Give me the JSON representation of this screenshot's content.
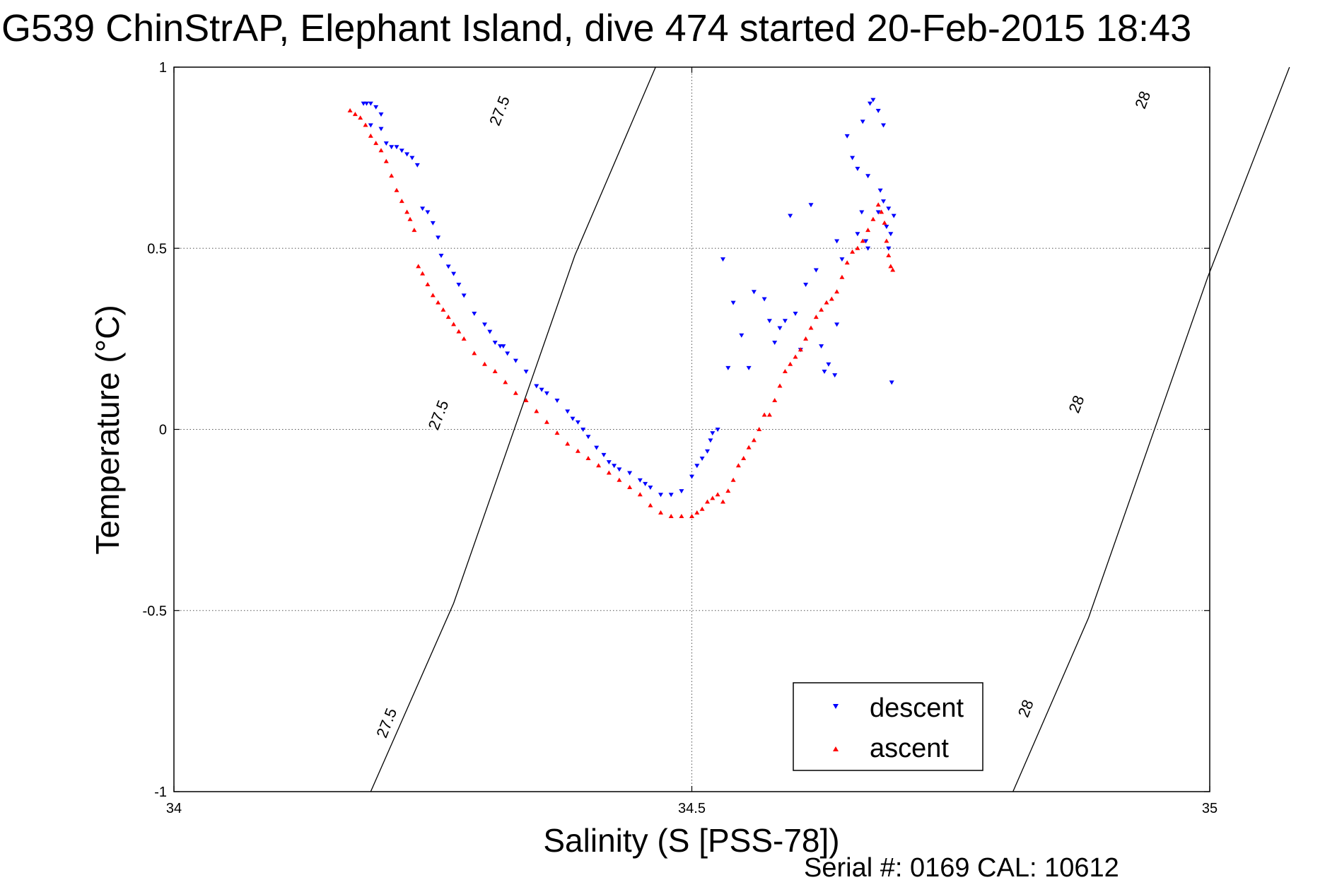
{
  "chart_data": {
    "type": "scatter",
    "title": "G539 ChinStrAP, Elephant Island, dive 474 started 20-Feb-2015 18:43",
    "xlabel": "Salinity (S [PSS-78])",
    "ylabel": "Temperature (°C)",
    "xlim": [
      34,
      35
    ],
    "ylim": [
      -1,
      1
    ],
    "xticks": [
      34,
      34.5,
      35
    ],
    "xtick_labels": [
      "34",
      "34.5",
      "35"
    ],
    "yticks": [
      -1,
      -0.5,
      0,
      0.5,
      1
    ],
    "ytick_labels": [
      "-1",
      "-0.5",
      "0",
      "0.5",
      "1"
    ],
    "grid": true,
    "legend_position": "bottom-right",
    "footer_text": "Serial #: 0169 CAL: 10612",
    "density_contours": [
      {
        "label": "27.5",
        "points": [
          [
            34.19,
            -1.0
          ],
          [
            34.27,
            -0.48
          ],
          [
            34.387,
            0.48
          ],
          [
            34.465,
            1.0
          ]
        ],
        "label_positions": [
          [
            34.205,
            -0.81
          ],
          [
            34.255,
            0.04
          ],
          [
            34.314,
            0.88
          ]
        ]
      },
      {
        "label": "28",
        "points": [
          [
            34.81,
            -1.0
          ],
          [
            34.883,
            -0.52
          ],
          [
            34.998,
            0.42
          ],
          [
            35.077,
            1.0
          ]
        ],
        "label_positions": [
          [
            34.822,
            -0.77
          ],
          [
            34.871,
            0.07
          ],
          [
            34.935,
            0.91
          ]
        ]
      }
    ],
    "series": [
      {
        "name": "descent",
        "color": "#0000ff",
        "marker": "triangle-down",
        "x": [
          34.183,
          34.186,
          34.19,
          34.195,
          34.2,
          34.19,
          34.2,
          34.205,
          34.21,
          34.215,
          34.22,
          34.225,
          34.23,
          34.235,
          34.24,
          34.245,
          34.25,
          34.255,
          34.258,
          34.265,
          34.27,
          34.275,
          34.28,
          34.29,
          34.3,
          34.305,
          34.31,
          34.315,
          34.318,
          34.322,
          34.33,
          34.34,
          34.35,
          34.355,
          34.36,
          34.37,
          34.38,
          34.385,
          34.39,
          34.395,
          34.4,
          34.408,
          34.415,
          34.42,
          34.425,
          34.43,
          34.44,
          34.45,
          34.455,
          34.46,
          34.47,
          34.48,
          34.49,
          34.5,
          34.505,
          34.51,
          34.515,
          34.518,
          34.52,
          34.525,
          34.53,
          34.535,
          34.54,
          34.548,
          34.555,
          34.56,
          34.57,
          34.575,
          34.58,
          34.585,
          34.59,
          34.595,
          34.6,
          34.605,
          34.61,
          34.615,
          34.62,
          34.628,
          34.632,
          34.64,
          34.645,
          34.65,
          34.655,
          34.66,
          34.665,
          34.67,
          34.672,
          34.675,
          34.68,
          34.682,
          34.685,
          34.688,
          34.69,
          34.692,
          34.695,
          34.68,
          34.67,
          34.64,
          34.625,
          34.638,
          34.685,
          34.69,
          34.693,
          34.66,
          34.664,
          34.668
        ],
        "y": [
          0.9,
          0.9,
          0.9,
          0.89,
          0.87,
          0.84,
          0.83,
          0.79,
          0.78,
          0.78,
          0.77,
          0.76,
          0.75,
          0.73,
          0.61,
          0.6,
          0.57,
          0.53,
          0.48,
          0.45,
          0.43,
          0.4,
          0.37,
          0.32,
          0.29,
          0.27,
          0.24,
          0.23,
          0.23,
          0.21,
          0.19,
          0.16,
          0.12,
          0.11,
          0.1,
          0.08,
          0.05,
          0.03,
          0.02,
          0.0,
          -0.02,
          -0.05,
          -0.07,
          -0.09,
          -0.1,
          -0.11,
          -0.12,
          -0.14,
          -0.15,
          -0.16,
          -0.18,
          -0.18,
          -0.17,
          -0.13,
          -0.1,
          -0.08,
          -0.06,
          -0.03,
          -0.01,
          0.0,
          0.47,
          0.17,
          0.35,
          0.26,
          0.17,
          0.38,
          0.36,
          0.3,
          0.24,
          0.28,
          0.3,
          0.59,
          0.32,
          0.22,
          0.4,
          0.62,
          0.44,
          0.16,
          0.18,
          0.29,
          0.47,
          0.81,
          0.75,
          0.72,
          0.85,
          0.7,
          0.9,
          0.91,
          0.88,
          0.66,
          0.63,
          0.56,
          0.61,
          0.54,
          0.59,
          0.6,
          0.5,
          0.52,
          0.23,
          0.15,
          0.84,
          0.5,
          0.13,
          0.54,
          0.6,
          0.52
        ]
      },
      {
        "name": "ascent",
        "color": "#ff0000",
        "marker": "triangle-up",
        "x": [
          34.17,
          34.175,
          34.18,
          34.185,
          34.19,
          34.195,
          34.2,
          34.205,
          34.21,
          34.215,
          34.22,
          34.225,
          34.228,
          34.232,
          34.236,
          34.24,
          34.245,
          34.25,
          34.255,
          34.26,
          34.265,
          34.27,
          34.275,
          34.28,
          34.29,
          34.3,
          34.31,
          34.32,
          34.33,
          34.34,
          34.35,
          34.36,
          34.37,
          34.38,
          34.39,
          34.4,
          34.41,
          34.42,
          34.43,
          34.44,
          34.45,
          34.46,
          34.47,
          34.48,
          34.49,
          34.5,
          34.505,
          34.51,
          34.515,
          34.52,
          34.525,
          34.53,
          34.535,
          34.54,
          34.545,
          34.55,
          34.555,
          34.56,
          34.565,
          34.57,
          34.575,
          34.58,
          34.585,
          34.59,
          34.595,
          34.6,
          34.605,
          34.61,
          34.615,
          34.62,
          34.625,
          34.63,
          34.635,
          34.64,
          34.645,
          34.65,
          34.655,
          34.66,
          34.665,
          34.67,
          34.675,
          34.68,
          34.683,
          34.686,
          34.688,
          34.69,
          34.692,
          34.694
        ],
        "y": [
          0.88,
          0.87,
          0.86,
          0.84,
          0.81,
          0.79,
          0.77,
          0.74,
          0.7,
          0.66,
          0.63,
          0.6,
          0.58,
          0.55,
          0.45,
          0.43,
          0.4,
          0.37,
          0.35,
          0.33,
          0.31,
          0.29,
          0.27,
          0.25,
          0.21,
          0.18,
          0.16,
          0.13,
          0.1,
          0.08,
          0.05,
          0.02,
          -0.01,
          -0.04,
          -0.06,
          -0.08,
          -0.1,
          -0.12,
          -0.14,
          -0.16,
          -0.18,
          -0.21,
          -0.23,
          -0.24,
          -0.24,
          -0.24,
          -0.23,
          -0.22,
          -0.2,
          -0.19,
          -0.18,
          -0.2,
          -0.17,
          -0.14,
          -0.1,
          -0.08,
          -0.05,
          -0.03,
          0.0,
          0.04,
          0.04,
          0.08,
          0.12,
          0.16,
          0.18,
          0.2,
          0.22,
          0.25,
          0.28,
          0.31,
          0.33,
          0.35,
          0.36,
          0.38,
          0.42,
          0.46,
          0.49,
          0.5,
          0.52,
          0.55,
          0.58,
          0.62,
          0.6,
          0.57,
          0.52,
          0.48,
          0.45,
          0.44
        ]
      }
    ]
  }
}
